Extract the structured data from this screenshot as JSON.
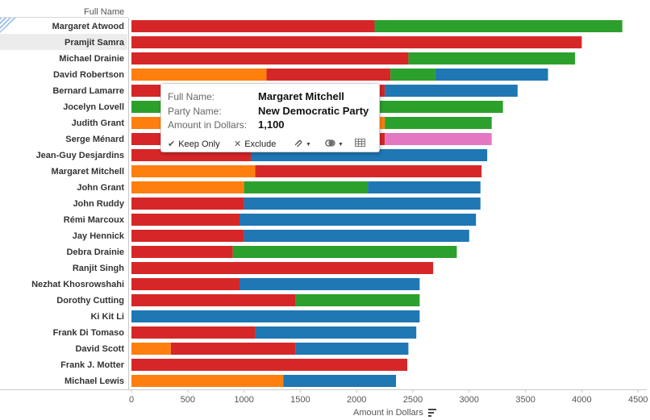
{
  "header": {
    "field_label": "Full Name"
  },
  "chart_data": {
    "type": "bar",
    "orientation": "horizontal",
    "stacked": true,
    "xlabel": "Amount in Dollars",
    "xlim": [
      0,
      4600
    ],
    "xticks": [
      0,
      500,
      1000,
      1500,
      2000,
      2500,
      3000,
      3500,
      4000,
      4500
    ],
    "grid": false,
    "legend": "none",
    "highlighted_row": "Pramjit Samra",
    "categories": [
      "Margaret Atwood",
      "Pramjit Samra",
      "Michael Drainie",
      "David Robertson",
      "Bernard Lamarre",
      "Jocelyn Lovell",
      "Judith Grant",
      "Serge Ménard",
      "Jean-Guy Desjardins",
      "Margaret Mitchell",
      "John Grant",
      "John Ruddy",
      "Rémi Marcoux",
      "Jay Hennick",
      "Debra Drainie",
      "Ranjit Singh",
      "Nezhat Khosrowshahi",
      "Dorothy Cutting",
      "Ki Kit Li",
      "Frank Di Tomaso",
      "David Scott",
      "Frank J. Motter",
      "Michael Lewis"
    ],
    "party_colors": {
      "orange": "#ff7f0e",
      "red": "#d62728",
      "green": "#2ca02c",
      "blue": "#1f77b4",
      "pink": "#e377c2"
    },
    "rows": [
      {
        "name": "Margaret Atwood",
        "segments": [
          {
            "color": "red",
            "value": 2160
          },
          {
            "color": "green",
            "value": 2200
          }
        ]
      },
      {
        "name": "Pramjit Samra",
        "segments": [
          {
            "color": "red",
            "value": 4000
          }
        ]
      },
      {
        "name": "Michael Drainie",
        "segments": [
          {
            "color": "red",
            "value": 2460
          },
          {
            "color": "green",
            "value": 1480
          }
        ]
      },
      {
        "name": "David Robertson",
        "segments": [
          {
            "color": "orange",
            "value": 1200
          },
          {
            "color": "red",
            "value": 1100
          },
          {
            "color": "green",
            "value": 400
          },
          {
            "color": "blue",
            "value": 1000
          }
        ]
      },
      {
        "name": "Bernard Lamarre",
        "segments": [
          {
            "color": "red",
            "value": 2250
          },
          {
            "color": "blue",
            "value": 1180
          }
        ]
      },
      {
        "name": "Jocelyn Lovell",
        "segments": [
          {
            "color": "green",
            "value": 3300
          }
        ]
      },
      {
        "name": "Judith Grant",
        "segments": [
          {
            "color": "orange",
            "value": 2250
          },
          {
            "color": "green",
            "value": 950
          }
        ]
      },
      {
        "name": "Serge Ménard",
        "segments": [
          {
            "color": "red",
            "value": 2250
          },
          {
            "color": "pink",
            "value": 950
          }
        ]
      },
      {
        "name": "Jean-Guy Desjardins",
        "segments": [
          {
            "color": "red",
            "value": 1060
          },
          {
            "color": "blue",
            "value": 2100
          }
        ]
      },
      {
        "name": "Margaret Mitchell",
        "segments": [
          {
            "color": "orange",
            "value": 1100
          },
          {
            "color": "red",
            "value": 2010
          }
        ]
      },
      {
        "name": "John Grant",
        "segments": [
          {
            "color": "orange",
            "value": 1000
          },
          {
            "color": "green",
            "value": 1100
          },
          {
            "color": "blue",
            "value": 1000
          }
        ]
      },
      {
        "name": "John Ruddy",
        "segments": [
          {
            "color": "red",
            "value": 1000
          },
          {
            "color": "blue",
            "value": 2100
          }
        ]
      },
      {
        "name": "Rémi Marcoux",
        "segments": [
          {
            "color": "red",
            "value": 960
          },
          {
            "color": "blue",
            "value": 2100
          }
        ]
      },
      {
        "name": "Jay Hennick",
        "segments": [
          {
            "color": "red",
            "value": 1000
          },
          {
            "color": "blue",
            "value": 2000
          }
        ]
      },
      {
        "name": "Debra Drainie",
        "segments": [
          {
            "color": "red",
            "value": 900
          },
          {
            "color": "green",
            "value": 1990
          }
        ]
      },
      {
        "name": "Ranjit Singh",
        "segments": [
          {
            "color": "red",
            "value": 2680
          }
        ]
      },
      {
        "name": "Nezhat Khosrowshahi",
        "segments": [
          {
            "color": "red",
            "value": 960
          },
          {
            "color": "blue",
            "value": 1600
          }
        ]
      },
      {
        "name": "Dorothy Cutting",
        "segments": [
          {
            "color": "red",
            "value": 1460
          },
          {
            "color": "green",
            "value": 1100
          }
        ]
      },
      {
        "name": "Ki Kit Li",
        "segments": [
          {
            "color": "blue",
            "value": 2560
          }
        ]
      },
      {
        "name": "Frank Di Tomaso",
        "segments": [
          {
            "color": "red",
            "value": 1100
          },
          {
            "color": "blue",
            "value": 1430
          }
        ]
      },
      {
        "name": "David Scott",
        "segments": [
          {
            "color": "orange",
            "value": 350
          },
          {
            "color": "red",
            "value": 1110
          },
          {
            "color": "blue",
            "value": 1000
          }
        ]
      },
      {
        "name": "Frank J. Motter",
        "segments": [
          {
            "color": "red",
            "value": 2450
          }
        ]
      },
      {
        "name": "Michael Lewis",
        "segments": [
          {
            "color": "orange",
            "value": 1350
          },
          {
            "color": "blue",
            "value": 1000
          }
        ]
      }
    ]
  },
  "tooltip": {
    "fields": [
      {
        "label": "Full Name:",
        "value": "Margaret Mitchell"
      },
      {
        "label": "Party Name:",
        "value": "New Democratic Party"
      },
      {
        "label": "Amount in Dollars:",
        "value": "1,100"
      }
    ],
    "keep_only_label": "Keep Only",
    "exclude_label": "Exclude",
    "icons": [
      "check-icon",
      "x-icon",
      "paperclip-icon",
      "group-icon",
      "view-data-icon"
    ]
  }
}
